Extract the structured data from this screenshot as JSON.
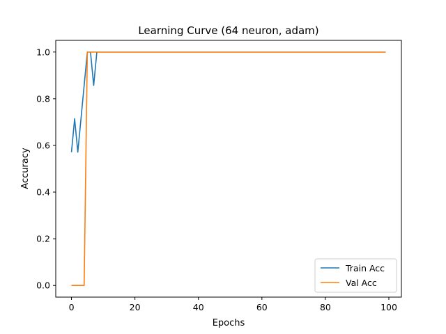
{
  "chart_data": {
    "type": "line",
    "title": "Learning Curve (64 neuron, adam)",
    "xlabel": "Epochs",
    "ylabel": "Accuracy",
    "xlim": [
      -4.95,
      103.95
    ],
    "ylim": [
      -0.05,
      1.05
    ],
    "xticks": [
      0,
      20,
      40,
      60,
      80,
      100
    ],
    "yticks": [
      0.0,
      0.2,
      0.4,
      0.6,
      0.8,
      1.0
    ],
    "xtick_labels": [
      "0",
      "20",
      "40",
      "60",
      "80",
      "100"
    ],
    "ytick_labels": [
      "0.0",
      "0.2",
      "0.4",
      "0.6",
      "0.8",
      "1.0"
    ],
    "grid": false,
    "legend_position": "lower-right",
    "series": [
      {
        "name": "Train Acc",
        "color": "#1f77b4",
        "x": [
          0,
          1,
          2,
          5,
          6,
          7,
          8,
          99
        ],
        "y": [
          0.571,
          0.714,
          0.571,
          1.0,
          1.0,
          0.857,
          1.0,
          1.0
        ]
      },
      {
        "name": "Val Acc",
        "color": "#ff7f0e",
        "x": [
          0,
          4,
          5,
          99
        ],
        "y": [
          0.0,
          0.0,
          1.0,
          1.0
        ]
      }
    ]
  }
}
